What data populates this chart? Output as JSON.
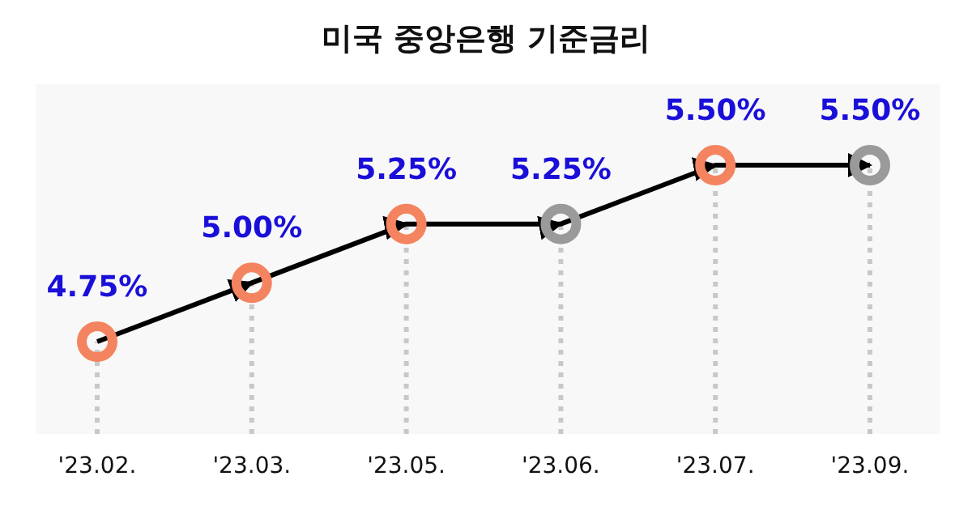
{
  "chart_data": {
    "type": "line",
    "title": "미국 중앙은행 기준금리",
    "categories": [
      "'23.02.",
      "'23.03.",
      "'23.05.",
      "'23.06.",
      "'23.07.",
      "'23.09."
    ],
    "series": [
      {
        "color": "#000000",
        "values": [
          4.75,
          5.0,
          5.25,
          5.25,
          5.5,
          5.5
        ],
        "colors": [
          "#f4845f",
          "#f4845f",
          "#f4845f",
          "#9a9a9a",
          "#f4845f",
          "#9a9a9a"
        ],
        "value_labels": [
          "4.75%",
          "5.00%",
          "5.25%",
          "5.25%",
          "5.50%",
          "5.50%"
        ]
      }
    ],
    "marker": "circle",
    "grid": "x",
    "tick_labels": "x"
  }
}
